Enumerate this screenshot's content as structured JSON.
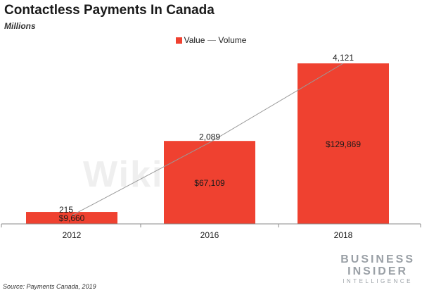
{
  "header": {
    "title": "Contactless Payments In Canada",
    "subtitle": "Millions"
  },
  "legend": {
    "value_label": "Value",
    "volume_label": "Volume"
  },
  "chart_data": {
    "type": "bar",
    "title": "Contactless Payments In Canada",
    "subtitle": "Millions",
    "categories": [
      "2012",
      "2016",
      "2018"
    ],
    "series": [
      {
        "name": "Value",
        "type": "bar",
        "values": [
          9660,
          67109,
          129869
        ],
        "labels": [
          "$9,660",
          "$67,109",
          "$129,869"
        ],
        "color": "#ef4130"
      },
      {
        "name": "Volume",
        "type": "line",
        "values": [
          215,
          2089,
          4121
        ],
        "labels": [
          "215",
          "2,089",
          "4,121"
        ],
        "color": "#9a9a9a"
      }
    ],
    "legend_position": "top-center",
    "grid": false
  },
  "footer": {
    "source": "Source: Payments Canada, 2019",
    "brand_line1": "BUSINESS",
    "brand_line2": "INSIDER",
    "brand_line3": "INTELLIGENCE",
    "watermark": "WikiFX"
  }
}
